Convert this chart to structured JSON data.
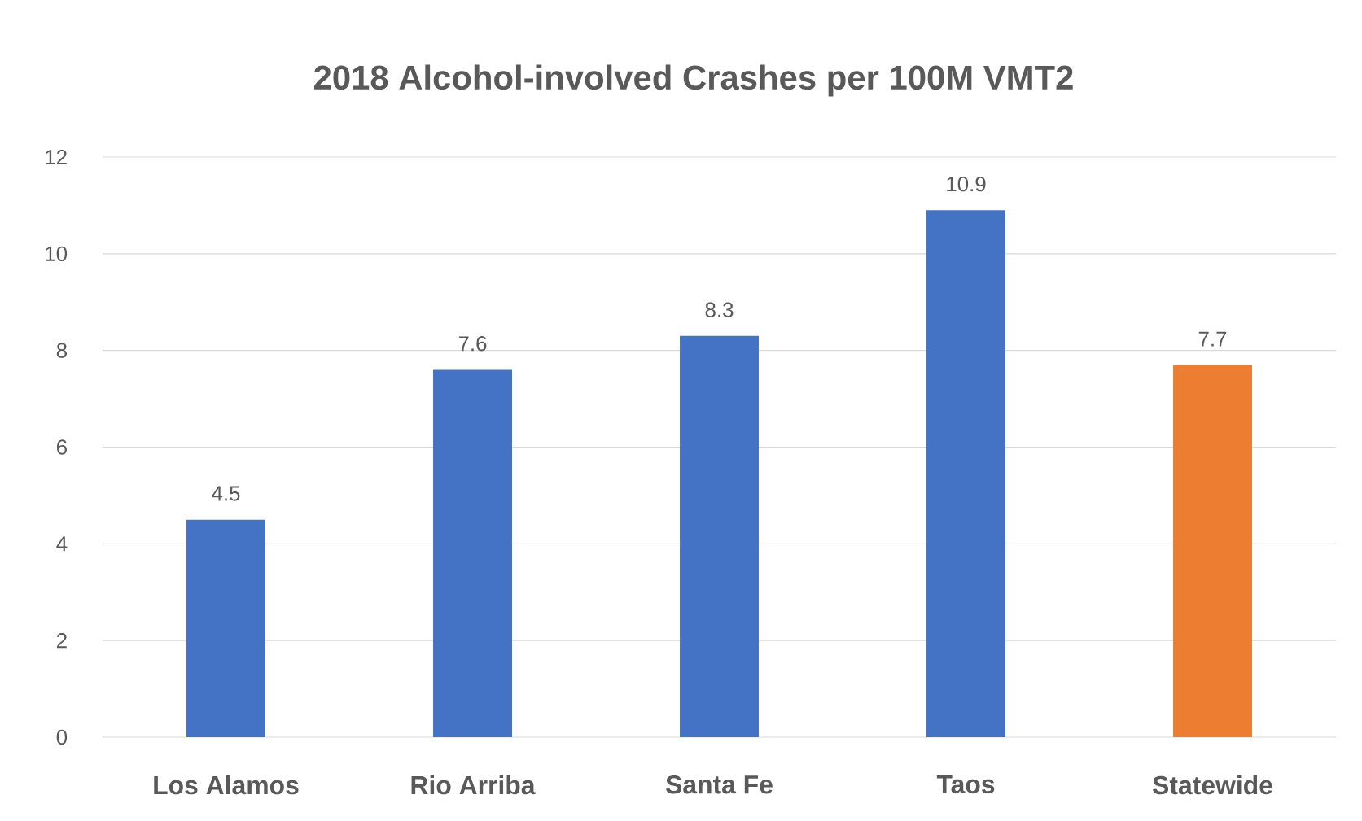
{
  "chart_data": {
    "type": "bar",
    "title": "2018 Alcohol-involved Crashes per 100M VMT2",
    "categories": [
      "Los Alamos",
      "Rio Arriba",
      "Santa Fe",
      "Taos",
      "Statewide"
    ],
    "values": [
      4.5,
      7.6,
      8.3,
      10.9,
      7.7
    ],
    "colors": [
      "#4472c4",
      "#4472c4",
      "#4472c4",
      "#4472c4",
      "#ed7d31"
    ],
    "ylim": [
      0,
      12
    ],
    "yticks": [
      0,
      2,
      4,
      6,
      8,
      10,
      12
    ],
    "grid": "y",
    "data_labels": true
  }
}
